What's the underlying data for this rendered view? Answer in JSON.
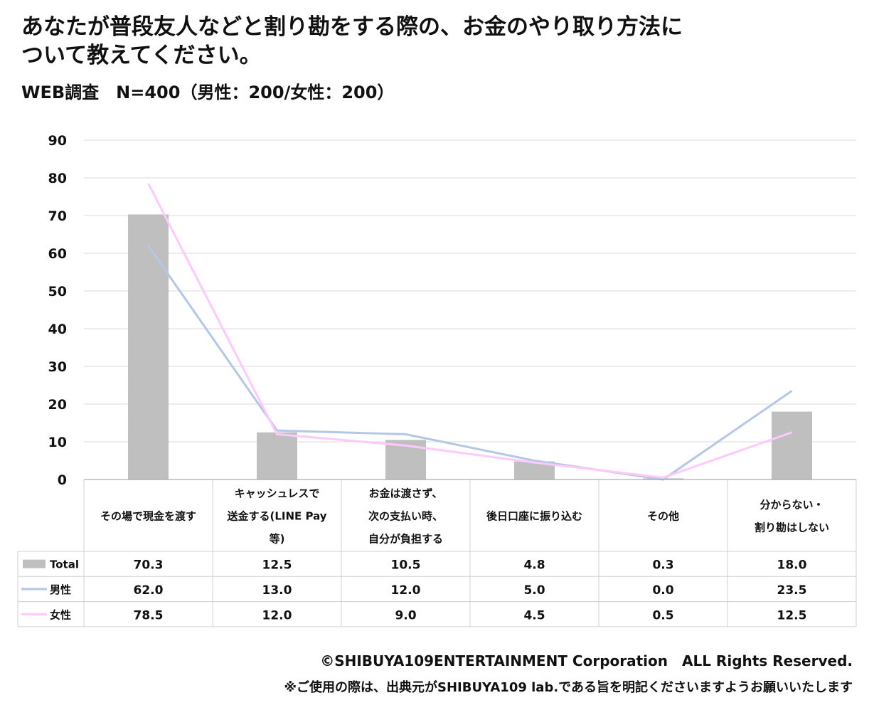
{
  "title_line1": "あなたが普段友人などと割り勘をする際の、お金のやり取り方法に",
  "title_line2": "ついて教えてください。",
  "subtitle": "WEB調査　N=400（男性：200/女性：200）",
  "footer_copyright": "©SHIBUYA109ENTERTAINMENT Corporation　ALL Rights Reserved.",
  "footer_note": "※ご使用の際は、出典元がSHIBUYA109 lab.である旨を明記くださいますようお願いいたします",
  "colors": {
    "total": "#bfbfbf",
    "male": "#b4c7e7",
    "female": "#ffc8ff",
    "grid": "#d9d9d9"
  },
  "chart_data": {
    "type": "bar",
    "ylim": [
      0,
      90
    ],
    "yticks": [
      "0",
      "10",
      "20",
      "30",
      "40",
      "50",
      "60",
      "70",
      "80",
      "90"
    ],
    "grid": true,
    "legend": "data-table",
    "categories": [
      [
        "その場で現金を渡す"
      ],
      [
        "キャッシュレスで",
        "送金する(LINE Pay",
        "等)"
      ],
      [
        "お金は渡さず、",
        "次の支払い時、",
        "自分が負担する"
      ],
      [
        "後日口座に振り込む"
      ],
      [
        "その他"
      ],
      [
        "分からない・",
        "割り勘はしない"
      ]
    ],
    "series": [
      {
        "name": "Total",
        "kind": "bar",
        "values": [
          70.3,
          12.5,
          10.5,
          4.8,
          0.3,
          18.0
        ],
        "labels": [
          "70.3",
          "12.5",
          "10.5",
          "4.8",
          "0.3",
          "18.0"
        ]
      },
      {
        "name": "男性",
        "kind": "line",
        "values": [
          62.0,
          13.0,
          12.0,
          5.0,
          0.0,
          23.5
        ],
        "labels": [
          "62.0",
          "13.0",
          "12.0",
          "5.0",
          "0.0",
          "23.5"
        ]
      },
      {
        "name": "女性",
        "kind": "line",
        "values": [
          78.5,
          12.0,
          9.0,
          4.5,
          0.5,
          12.5
        ],
        "labels": [
          "78.5",
          "12.0",
          "9.0",
          "4.5",
          "0.5",
          "12.5"
        ]
      }
    ]
  }
}
